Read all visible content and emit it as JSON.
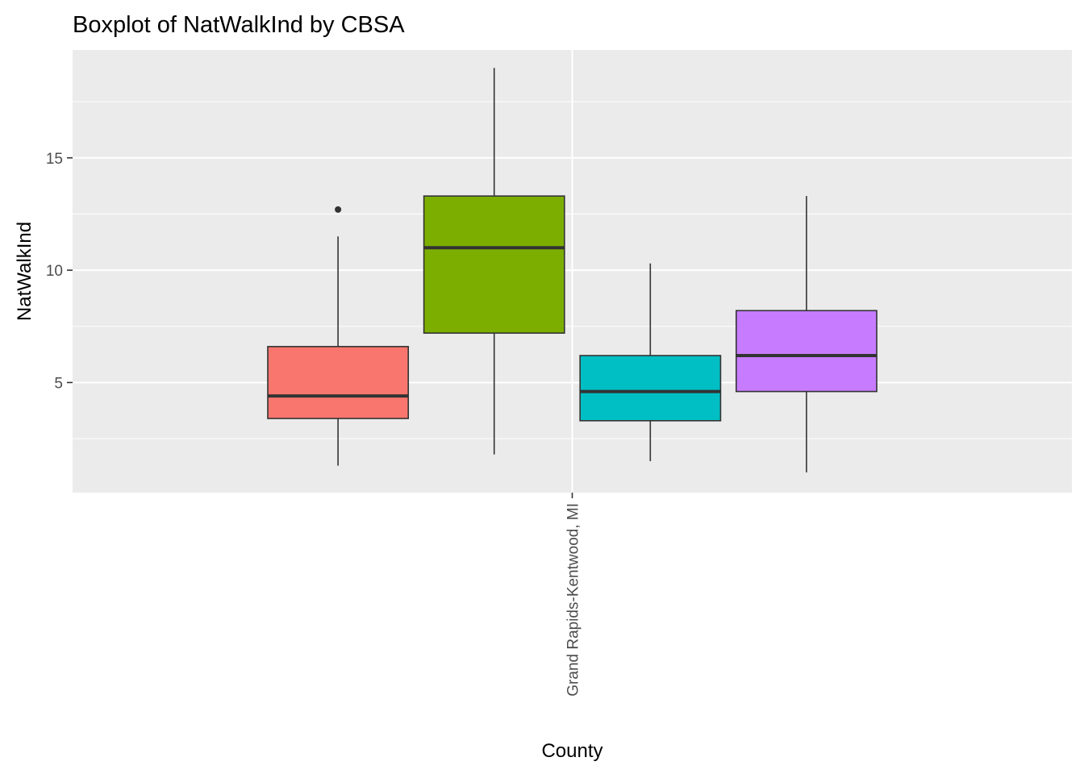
{
  "chart_data": {
    "type": "boxplot",
    "title": "Boxplot of NatWalkInd by CBSA",
    "xlabel": "County",
    "ylabel": "NatWalkInd",
    "categories": [
      "Grand Rapids-Kentwood, MI"
    ],
    "ylim": [
      0.1,
      19.8
    ],
    "yticks": [
      5,
      10,
      15
    ],
    "grid": true,
    "panel_color": "#EBEBEB",
    "boxes": [
      {
        "fill": "#F8766D",
        "lower_whisker": 1.3,
        "q1": 3.4,
        "median": 4.4,
        "q3": 6.6,
        "upper_whisker": 11.5,
        "outliers": [
          12.7
        ]
      },
      {
        "fill": "#7CAE00",
        "lower_whisker": 1.8,
        "q1": 7.2,
        "median": 11.0,
        "q3": 13.3,
        "upper_whisker": 19.0,
        "outliers": []
      },
      {
        "fill": "#00BFC4",
        "lower_whisker": 1.5,
        "q1": 3.3,
        "median": 4.6,
        "q3": 6.2,
        "upper_whisker": 10.3,
        "outliers": []
      },
      {
        "fill": "#C77CFF",
        "lower_whisker": 1.0,
        "q1": 4.6,
        "median": 6.2,
        "q3": 8.2,
        "upper_whisker": 13.3,
        "outliers": []
      }
    ]
  }
}
